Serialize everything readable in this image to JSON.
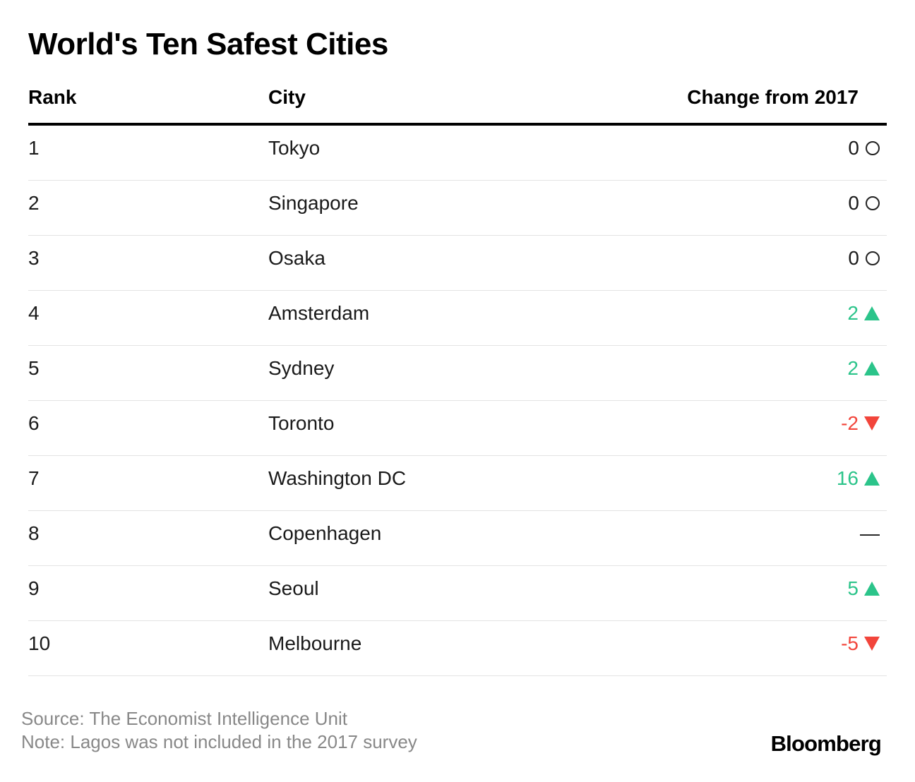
{
  "chart_data": {
    "type": "table",
    "title": "World's Ten Safest Cities",
    "columns": [
      "Rank",
      "City",
      "Change from 2017"
    ],
    "rows": [
      {
        "rank": "1",
        "city": "Tokyo",
        "change": "0",
        "direction": "none",
        "color": "#1a1a1a"
      },
      {
        "rank": "2",
        "city": "Singapore",
        "change": "0",
        "direction": "none",
        "color": "#1a1a1a"
      },
      {
        "rank": "3",
        "city": "Osaka",
        "change": "0",
        "direction": "none",
        "color": "#1a1a1a"
      },
      {
        "rank": "4",
        "city": "Amsterdam",
        "change": "2",
        "direction": "up",
        "color": "#2bc48a"
      },
      {
        "rank": "5",
        "city": "Sydney",
        "change": "2",
        "direction": "up",
        "color": "#2bc48a"
      },
      {
        "rank": "6",
        "city": "Toronto",
        "change": "-2",
        "direction": "down",
        "color": "#f2453b"
      },
      {
        "rank": "7",
        "city": "Washington DC",
        "change": "16",
        "direction": "up",
        "color": "#2bc48a"
      },
      {
        "rank": "8",
        "city": "Copenhagen",
        "change": "—",
        "direction": "na",
        "color": "#1a1a1a"
      },
      {
        "rank": "9",
        "city": "Seoul",
        "change": "5",
        "direction": "up",
        "color": "#2bc48a"
      },
      {
        "rank": "10",
        "city": "Melbourne",
        "change": "-5",
        "direction": "down",
        "color": "#f2453b"
      }
    ],
    "source": "Source: The Economist Intelligence Unit",
    "note": "Note: Lagos was not included in the 2017 survey"
  },
  "brand": "Bloomberg",
  "colors": {
    "up": "#2bc48a",
    "down": "#f2453b",
    "neutral": "#1a1a1a"
  }
}
